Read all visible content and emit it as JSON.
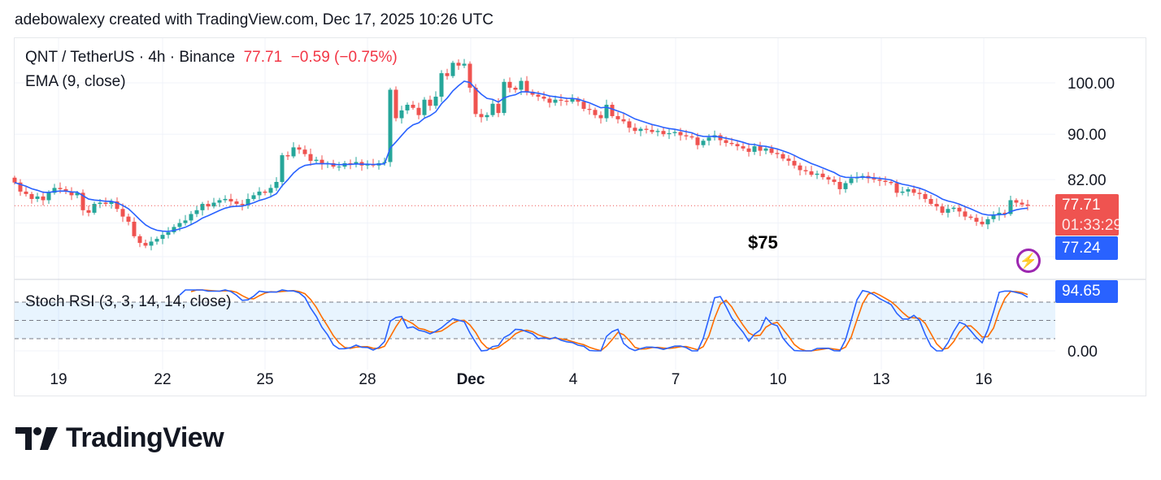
{
  "credit": "adebowalexy created with TradingView.com, Dec 17, 2025 10:26 UTC",
  "legend": {
    "symbol": "QNT / TetherUS · 4h · Binance",
    "price": "77.71",
    "change": "−0.59 (−0.75%)",
    "ema": "EMA (9, close)",
    "stoch": "Stoch RSI (3, 3, 14, 14, close)"
  },
  "annotation": "$75",
  "price_tag": {
    "price": "77.71",
    "countdown": "01:33:29"
  },
  "ema_tag": "77.24",
  "stoch_tag": "94.65",
  "logo_text": "TradingView",
  "colors": {
    "up": "#26a69a",
    "down": "#ef5350",
    "ema": "#2962ff",
    "stoch_k": "#2962ff",
    "stoch_d": "#ff6d00",
    "accent_icon": "#9c27b0"
  },
  "chart_data": [
    {
      "type": "candlestick",
      "title": "QNT / TetherUS · 4h · Binance",
      "scale": "log",
      "y_ticks": [
        "100.00",
        "90.00",
        "82.00"
      ],
      "x_ticks": [
        "19",
        "22",
        "25",
        "28",
        "Dec",
        "4",
        "7",
        "10",
        "13",
        "16"
      ],
      "grid": true,
      "overlay": "EMA (9, close)",
      "closes": [
        81.5,
        80.0,
        79.6,
        78.8,
        79.2,
        78.6,
        79.8,
        80.6,
        80.4,
        80.0,
        79.4,
        79.8,
        77.0,
        76.6,
        78.0,
        78.2,
        78.0,
        78.4,
        77.2,
        76.0,
        75.2,
        73.0,
        72.0,
        71.6,
        72.2,
        72.6,
        73.2,
        73.6,
        74.4,
        75.0,
        75.4,
        76.4,
        77.0,
        78.0,
        77.6,
        78.2,
        78.6,
        78.8,
        78.4,
        78.0,
        77.8,
        78.8,
        79.4,
        80.0,
        79.8,
        80.6,
        81.6,
        86.2,
        86.0,
        87.6,
        87.2,
        86.4,
        85.2,
        85.4,
        84.6,
        84.8,
        84.2,
        84.2,
        84.8,
        84.6,
        85.0,
        84.4,
        84.6,
        84.4,
        84.8,
        85.0,
        98.6,
        93.0,
        94.5,
        95.6,
        95.0,
        93.6,
        96.6,
        95.4,
        97.2,
        102.0,
        101.4,
        104.2,
        103.6,
        104.0,
        99.0,
        93.8,
        93.2,
        93.6,
        95.8,
        94.0,
        100.2,
        99.0,
        98.6,
        100.4,
        98.2,
        97.6,
        97.2,
        96.8,
        96.0,
        96.6,
        96.4,
        96.2,
        96.8,
        96.2,
        94.8,
        94.6,
        93.6,
        93.0,
        95.6,
        93.4,
        92.8,
        92.4,
        91.2,
        90.6,
        91.0,
        90.8,
        90.4,
        90.6,
        90.0,
        90.2,
        90.4,
        89.8,
        89.6,
        89.4,
        88.0,
        88.8,
        89.4,
        89.8,
        88.9,
        88.4,
        88.2,
        87.8,
        87.4,
        86.8,
        87.8,
        87.0,
        87.4,
        86.6,
        86.4,
        85.6,
        85.2,
        84.4,
        83.6,
        83.4,
        82.8,
        83.0,
        82.4,
        82.0,
        81.6,
        80.4,
        81.4,
        82.2,
        82.4,
        82.6,
        82.2,
        82.0,
        81.8,
        81.6,
        81.4,
        79.8,
        80.0,
        80.4,
        79.8,
        79.6,
        78.8,
        78.0,
        77.6,
        76.6,
        77.2,
        77.4,
        76.8,
        76.0,
        75.8,
        75.2,
        74.8,
        75.6,
        76.2,
        76.6,
        76.4,
        78.6,
        78.2,
        77.9,
        77.71
      ],
      "last_price": 77.71,
      "ema_last": 77.24
    },
    {
      "type": "line",
      "title": "Stoch RSI (3, 3, 14, 14, close)",
      "y_ticks": [
        "0.00"
      ],
      "ylim": [
        0,
        100
      ],
      "bands": [
        20,
        50,
        80
      ],
      "last_k": 94.65
    }
  ]
}
